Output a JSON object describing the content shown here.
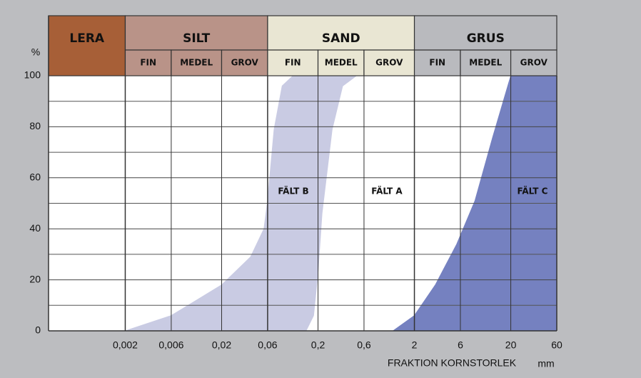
{
  "chart_data": {
    "type": "grain-size",
    "y_unit": "%",
    "x_label": "FRAKTION KORNSTORLEK",
    "x_unit": "mm",
    "log_x": true,
    "xlim": [
      0.00032,
      60
    ],
    "ylim": [
      0,
      100
    ],
    "yticks": [
      0,
      20,
      40,
      60,
      80,
      100
    ],
    "minor_yticks": [
      10,
      30,
      50,
      70,
      90
    ],
    "xticks": [
      {
        "value": 0.002,
        "label": "0,002"
      },
      {
        "value": 0.006,
        "label": "0,006"
      },
      {
        "value": 0.02,
        "label": "0,02"
      },
      {
        "value": 0.06,
        "label": "0,06"
      },
      {
        "value": 0.2,
        "label": "0,2"
      },
      {
        "value": 0.6,
        "label": "0,6"
      },
      2,
      6,
      20,
      60
    ],
    "fractions": [
      {
        "name": "LERA",
        "color": "#a75f37"
      },
      {
        "name": "SILT",
        "color": "#b99388",
        "subs": [
          "FIN",
          "MEDEL",
          "GROV"
        ]
      },
      {
        "name": "SAND",
        "color": "#e9e6d3",
        "subs": [
          "FIN",
          "MEDEL",
          "GROV"
        ]
      },
      {
        "name": "GRUS",
        "color": "#b9babe",
        "subs": [
          "FIN",
          "MEDEL",
          "GROV"
        ]
      }
    ],
    "series": [
      {
        "name": "FÄLT B",
        "color": "#c9cbe3",
        "lower": {
          "x": [
            0.002,
            0.006,
            0.02,
            0.04,
            0.055,
            0.06,
            0.07,
            0.085,
            0.11
          ],
          "y": [
            0,
            6,
            18,
            29,
            40,
            51,
            79,
            96,
            100
          ]
        },
        "upper": {
          "x": [
            0.15,
            0.18,
            0.2,
            0.22,
            0.28,
            0.36,
            0.5
          ],
          "y": [
            0,
            6,
            23,
            46,
            79,
            96,
            100
          ]
        }
      },
      {
        "name": "FÄLT C",
        "color": "#7581c0",
        "x": [
          1.2,
          2,
          3.3,
          5.5,
          8.5,
          13,
          20
        ],
        "y": [
          0,
          6,
          18,
          34,
          51,
          76,
          100
        ]
      }
    ],
    "annotations": [
      "FÄLT A"
    ]
  }
}
